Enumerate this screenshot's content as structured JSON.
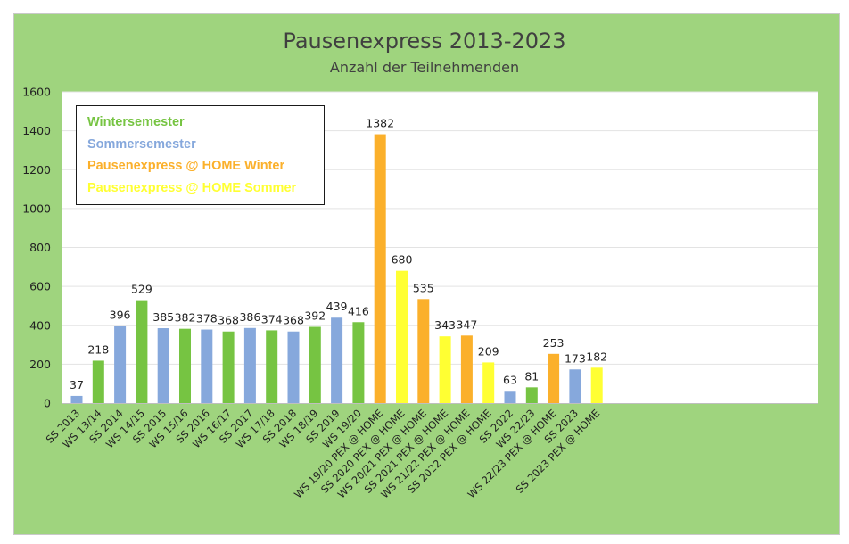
{
  "chart_data": {
    "type": "bar",
    "title": "Pausenexpress 2013-2023",
    "subtitle": "Anzahl der Teilnehmenden",
    "xlabel": "",
    "ylabel": "",
    "ylim": [
      0,
      1600
    ],
    "yticks": [
      "0",
      "200",
      "400",
      "600",
      "800",
      "1000",
      "1200",
      "1400",
      "1600"
    ],
    "grid": true,
    "legend_position": "top-left",
    "colors": {
      "Wintersemester": "#76c442",
      "Sommersemester": "#86a8dc",
      "Pausenexpress @ HOME Winter": "#fbb02b",
      "Pausenexpress @ HOME Sommer": "#ffff33"
    },
    "legend": [
      {
        "label": "Wintersemester",
        "color": "#76c442"
      },
      {
        "label": "Sommersemester",
        "color": "#86a8dc"
      },
      {
        "label": "Pausenexpress @ HOME Winter",
        "color": "#fbb02b"
      },
      {
        "label": "Pausenexpress @ HOME Sommer",
        "color": "#ffff33"
      }
    ],
    "bars": [
      {
        "category": "SS 2013",
        "value": 37,
        "series": "Sommersemester"
      },
      {
        "category": "WS 13/14",
        "value": 218,
        "series": "Wintersemester"
      },
      {
        "category": "SS 2014",
        "value": 396,
        "series": "Sommersemester"
      },
      {
        "category": "WS 14/15",
        "value": 529,
        "series": "Wintersemester"
      },
      {
        "category": "SS 2015",
        "value": 385,
        "series": "Sommersemester"
      },
      {
        "category": "WS 15/16",
        "value": 382,
        "series": "Wintersemester"
      },
      {
        "category": "SS 2016",
        "value": 378,
        "series": "Sommersemester"
      },
      {
        "category": "WS 16/17",
        "value": 368,
        "series": "Wintersemester"
      },
      {
        "category": "SS 2017",
        "value": 386,
        "series": "Sommersemester"
      },
      {
        "category": "WS 17/18",
        "value": 374,
        "series": "Wintersemester"
      },
      {
        "category": "SS 2018",
        "value": 368,
        "series": "Sommersemester"
      },
      {
        "category": "WS 18/19",
        "value": 392,
        "series": "Wintersemester"
      },
      {
        "category": "SS 2019",
        "value": 439,
        "series": "Sommersemester"
      },
      {
        "category": "WS 19/20",
        "value": 416,
        "series": "Wintersemester"
      },
      {
        "category": "WS 19/20 PEX @ HOME",
        "value": 1382,
        "series": "Pausenexpress @ HOME Winter"
      },
      {
        "category": "SS 2020 PEX @ HOME",
        "value": 680,
        "series": "Pausenexpress @ HOME Sommer"
      },
      {
        "category": "WS 20/21 PEX @ HOME",
        "value": 535,
        "series": "Pausenexpress @ HOME Winter"
      },
      {
        "category": "SS 2021 PEX @ HOME",
        "value": 343,
        "series": "Pausenexpress @ HOME Sommer"
      },
      {
        "category": "WS 21/22 PEX @ HOME",
        "value": 347,
        "series": "Pausenexpress @ HOME Winter"
      },
      {
        "category": "SS 2022 PEX @ HOME",
        "value": 209,
        "series": "Pausenexpress @ HOME Sommer"
      },
      {
        "category": "SS 2022",
        "value": 63,
        "series": "Sommersemester"
      },
      {
        "category": "WS 22/23",
        "value": 81,
        "series": "Wintersemester"
      },
      {
        "category": "WS 22/23 PEX @ HOME",
        "value": 253,
        "series": "Pausenexpress @ HOME Winter"
      },
      {
        "category": "SS 2023",
        "value": 173,
        "series": "Sommersemester"
      },
      {
        "category": "SS 2023 PEX @ HOME",
        "value": 182,
        "series": "Pausenexpress @ HOME Sommer"
      }
    ]
  }
}
